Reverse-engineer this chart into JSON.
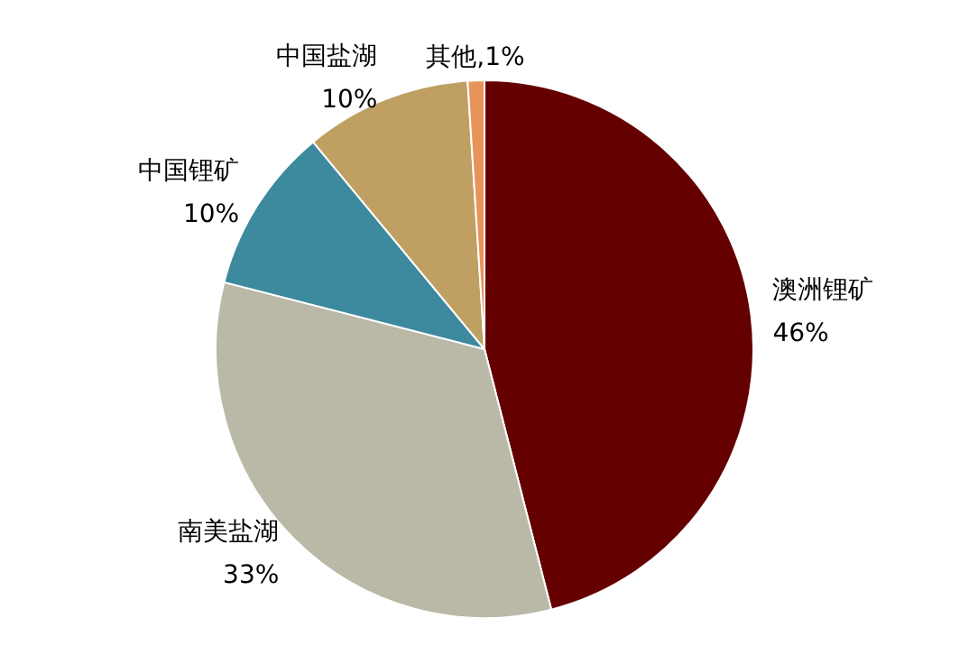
{
  "chart_data": {
    "type": "pie",
    "categories": [
      "澳洲锂矿",
      "南美盐湖",
      "中国锂矿",
      "中国盐湖",
      "其他,1%"
    ],
    "values": [
      46,
      33,
      10,
      10,
      1
    ],
    "colors": [
      "#650000",
      "#bab9a8",
      "#3d8a9e",
      "#bf9f62",
      "#e8935a"
    ],
    "value_labels": [
      "46%",
      "33%",
      "10%",
      "10%",
      null
    ],
    "legend": false
  }
}
